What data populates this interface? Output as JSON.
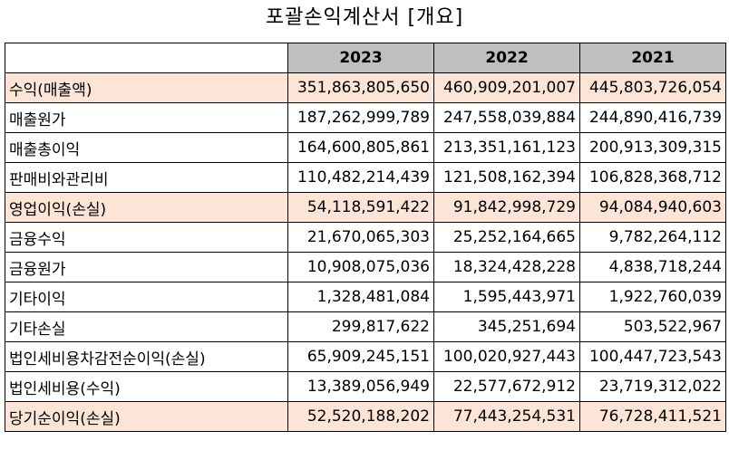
{
  "title": "포괄손익계산서 [개요]",
  "colors": {
    "header_bg": "#bfbfbf",
    "highlight_bg": "#fce4d6"
  },
  "columns": [
    "2023",
    "2022",
    "2021"
  ],
  "rows": [
    {
      "label": "수익(매출액)",
      "values": [
        "351,863,805,650",
        "460,909,201,007",
        "445,803,726,054"
      ],
      "highlight": true
    },
    {
      "label": "매출원가",
      "values": [
        "187,262,999,789",
        "247,558,039,884",
        "244,890,416,739"
      ],
      "highlight": false
    },
    {
      "label": "매출총이익",
      "values": [
        "164,600,805,861",
        "213,351,161,123",
        "200,913,309,315"
      ],
      "highlight": false
    },
    {
      "label": "판매비와관리비",
      "values": [
        "110,482,214,439",
        "121,508,162,394",
        "106,828,368,712"
      ],
      "highlight": false
    },
    {
      "label": "영업이익(손실)",
      "values": [
        "54,118,591,422",
        "91,842,998,729",
        "94,084,940,603"
      ],
      "highlight": true
    },
    {
      "label": "금융수익",
      "values": [
        "21,670,065,303",
        "25,252,164,665",
        "9,782,264,112"
      ],
      "highlight": false
    },
    {
      "label": "금융원가",
      "values": [
        "10,908,075,036",
        "18,324,428,228",
        "4,838,718,244"
      ],
      "highlight": false
    },
    {
      "label": "기타이익",
      "values": [
        "1,328,481,084",
        "1,595,443,971",
        "1,922,760,039"
      ],
      "highlight": false
    },
    {
      "label": "기타손실",
      "values": [
        "299,817,622",
        "345,251,694",
        "503,522,967"
      ],
      "highlight": false
    },
    {
      "label": "법인세비용차감전순이익(손실)",
      "values": [
        "65,909,245,151",
        "100,020,927,443",
        "100,447,723,543"
      ],
      "highlight": false
    },
    {
      "label": "법인세비용(수익)",
      "values": [
        "13,389,056,949",
        "22,577,672,912",
        "23,719,312,022"
      ],
      "highlight": false
    },
    {
      "label": "당기순이익(손실)",
      "values": [
        "52,520,188,202",
        "77,443,254,531",
        "76,728,411,521"
      ],
      "highlight": true
    }
  ]
}
